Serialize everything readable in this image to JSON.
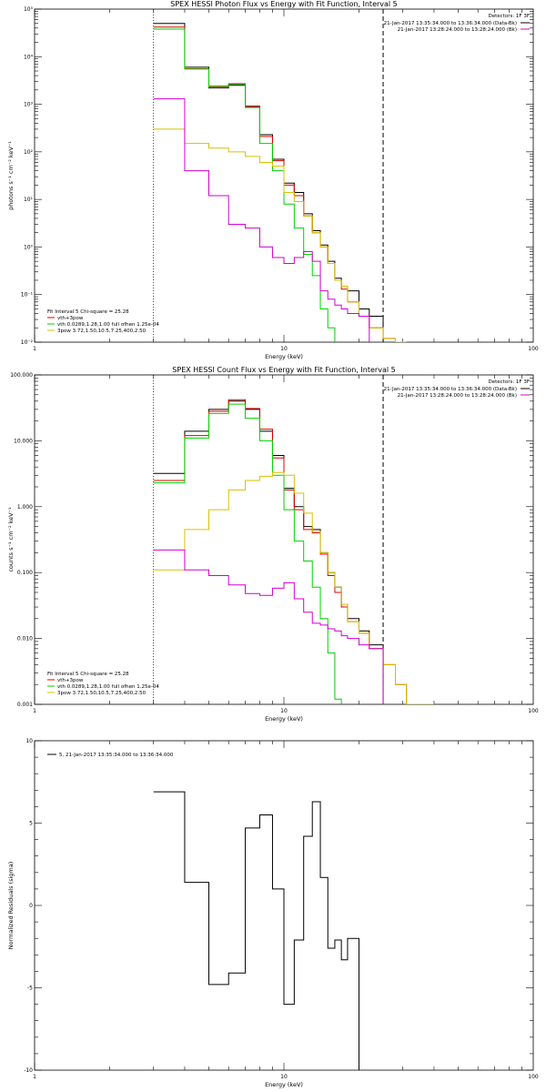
{
  "colors": {
    "black": "#000000",
    "red": "#e00000",
    "green": "#00d000",
    "yellow": "#d8c000",
    "magenta": "#d000d0",
    "marker": "#000000"
  },
  "chart_data": [
    {
      "type": "line",
      "step": true,
      "title": "SPEX HESSI Photon Flux vs Energy with Fit Function, Interval 5",
      "xlabel": "Energy (keV)",
      "ylabel": "photons s⁻¹ cm⁻² keV⁻¹",
      "xscale": "log",
      "yscale": "log",
      "xlim": [
        1,
        100
      ],
      "ylim": [
        0.01,
        100000
      ],
      "x_ticks": [
        {
          "v": 1,
          "t": "1"
        },
        {
          "v": 10,
          "t": "10"
        },
        {
          "v": 100,
          "t": "100"
        }
      ],
      "y_ticks": [
        {
          "v": 0.01,
          "t": "10⁻²"
        },
        {
          "v": 0.1,
          "t": "10⁻¹"
        },
        {
          "v": 1,
          "t": "10⁰"
        },
        {
          "v": 10,
          "t": "10¹"
        },
        {
          "v": 100,
          "t": "10²"
        },
        {
          "v": 1000,
          "t": "10³"
        },
        {
          "v": 10000,
          "t": "10⁴"
        },
        {
          "v": 100000,
          "t": "10⁵"
        }
      ],
      "legend_top": {
        "header": "Detectors: 1F 3F",
        "entries": [
          {
            "text": "21-Jan-2017 13:35:34.000 to 13:36:34.000 (Data-Bk)",
            "color": "black"
          },
          {
            "text": "21-Jan-2017 13:28:24.000 to 13:28:24.000 (Bk)",
            "color": "magenta"
          }
        ]
      },
      "legend_bottom": {
        "header": "Fit Interval 5   Chi-square = 25.28",
        "entries": [
          {
            "text": "vth+3pow",
            "color": "red"
          },
          {
            "text": "vth 0.0289,1.28,1.00  full ofhen 1.25e-04",
            "color": "green"
          },
          {
            "text": "3pow 3.72,1.50,10.5,7.25,400,2.50",
            "color": "yellow"
          }
        ]
      },
      "vlines": [
        {
          "x": 3,
          "style": "dotted"
        },
        {
          "x": 25,
          "style": "dashed"
        }
      ],
      "edges": [
        3,
        4,
        5,
        6,
        7,
        8,
        9,
        10,
        11,
        12,
        13,
        14,
        15,
        16,
        17,
        18,
        20,
        22,
        25,
        28,
        31,
        40
      ],
      "series": [
        {
          "color": "black",
          "values": [
            50000,
            6000,
            2200,
            2500,
            900,
            230,
            70,
            22,
            14,
            5,
            2.2,
            1.1,
            0.5,
            0.22,
            0.15,
            0.12,
            0.05,
            0.035,
            null,
            null,
            null
          ]
        },
        {
          "color": "red",
          "values": [
            42000,
            5600,
            2400,
            2700,
            920,
            210,
            65,
            20,
            12,
            4.5,
            2.0,
            1.0,
            0.45,
            0.2,
            0.13,
            0.07,
            0.035,
            0.02,
            0.012,
            null,
            null
          ]
        },
        {
          "color": "green",
          "values": [
            38000,
            5500,
            2300,
            2600,
            850,
            150,
            40,
            8,
            2.5,
            0.7,
            0.25,
            0.05,
            0.02,
            null,
            null,
            null,
            null,
            null,
            null,
            null,
            null
          ]
        },
        {
          "color": "yellow",
          "values": [
            300,
            150,
            120,
            100,
            80,
            60,
            50,
            14,
            9,
            4.5,
            2.0,
            1.0,
            0.45,
            0.2,
            0.15,
            0.07,
            0.035,
            0.02,
            0.012,
            0.01,
            null
          ]
        },
        {
          "color": "magenta",
          "values": [
            1300,
            40,
            12,
            3,
            2.5,
            1.0,
            0.6,
            0.45,
            0.6,
            0.8,
            0.5,
            0.12,
            0.08,
            0.06,
            0.05,
            0.04,
            0.035,
            null,
            null,
            null,
            null
          ]
        }
      ]
    },
    {
      "type": "line",
      "step": true,
      "title": "SPEX HESSI Count Flux vs Energy with Fit Function, Interval 5",
      "xlabel": "Energy (keV)",
      "ylabel": "counts s⁻¹ cm⁻² keV⁻¹",
      "xscale": "log",
      "yscale": "log",
      "xlim": [
        1,
        100
      ],
      "ylim": [
        0.001,
        100
      ],
      "x_ticks": [
        {
          "v": 1,
          "t": "1"
        },
        {
          "v": 10,
          "t": "10"
        },
        {
          "v": 100,
          "t": "100"
        }
      ],
      "y_ticks": [
        {
          "v": 0.001,
          "t": "0.001"
        },
        {
          "v": 0.01,
          "t": "0.010"
        },
        {
          "v": 0.1,
          "t": "0.100"
        },
        {
          "v": 1,
          "t": "1.000"
        },
        {
          "v": 10,
          "t": "10.000"
        },
        {
          "v": 100,
          "t": "100.000"
        }
      ],
      "legend_top": {
        "header": "Detectors: 1F 3F",
        "entries": [
          {
            "text": "21-Jan-2017 13:35:34.000 to 13:36:34.000 (Data-Bk)",
            "color": "black"
          },
          {
            "text": "21-Jan-2017 13:28:24.000 to 13:28:24.000 (Bk)",
            "color": "magenta"
          }
        ]
      },
      "legend_bottom": {
        "header": "Fit Interval 5   Chi-square = 25.28",
        "entries": [
          {
            "text": "vth+3pow",
            "color": "red"
          },
          {
            "text": "vth 0.0289,1.28,1.00  full ofhen 1.25e-04",
            "color": "green"
          },
          {
            "text": "3pow 3.72,1.50,10.5,7.25,400,2.50",
            "color": "yellow"
          }
        ]
      },
      "vlines": [
        {
          "x": 3,
          "style": "dotted"
        },
        {
          "x": 25,
          "style": "dashed"
        }
      ],
      "edges": [
        3,
        4,
        5,
        6,
        7,
        8,
        9,
        10,
        11,
        12,
        13,
        14,
        15,
        16,
        17,
        18,
        20,
        22,
        25,
        28,
        31,
        40
      ],
      "series": [
        {
          "color": "black",
          "values": [
            3.2,
            14,
            30,
            40,
            30,
            14,
            6,
            1.9,
            1.0,
            0.5,
            0.45,
            0.2,
            0.1,
            0.06,
            0.033,
            0.02,
            0.013,
            0.008,
            null,
            null,
            null
          ]
        },
        {
          "color": "red",
          "values": [
            2.5,
            12,
            28,
            42,
            31,
            15,
            5.5,
            1.8,
            0.9,
            0.45,
            0.4,
            0.19,
            0.09,
            0.05,
            0.03,
            0.018,
            0.012,
            0.007,
            0.004,
            0.002,
            null
          ]
        },
        {
          "color": "green",
          "values": [
            2.3,
            11,
            26,
            36,
            22,
            10,
            3,
            0.9,
            0.3,
            0.15,
            0.06,
            0.02,
            0.006,
            0.0012,
            null,
            null,
            null,
            null,
            null,
            null,
            null
          ]
        },
        {
          "color": "yellow",
          "values": [
            0.11,
            0.45,
            0.9,
            1.8,
            2.5,
            2.9,
            3.3,
            3.0,
            1.6,
            0.8,
            0.42,
            0.2,
            0.1,
            0.06,
            0.033,
            0.018,
            0.012,
            0.007,
            0.004,
            0.002,
            0.001
          ]
        },
        {
          "color": "magenta",
          "values": [
            0.22,
            0.11,
            0.09,
            0.065,
            0.048,
            0.045,
            0.058,
            0.07,
            0.04,
            0.025,
            0.017,
            0.016,
            0.014,
            0.013,
            0.011,
            0.01,
            0.008,
            0.007,
            null,
            null,
            null
          ]
        }
      ]
    },
    {
      "type": "line",
      "step": true,
      "title": "",
      "xlabel": "Energy (keV)",
      "ylabel": "Normalized Residuals (sigma)",
      "xscale": "log",
      "yscale": "linear",
      "xlim": [
        1,
        100
      ],
      "ylim": [
        -10,
        10
      ],
      "x_ticks": [
        {
          "v": 1,
          "t": "1"
        },
        {
          "v": 10,
          "t": "10"
        },
        {
          "v": 100,
          "t": "100"
        }
      ],
      "y_ticks": [
        {
          "v": -10,
          "t": "-10"
        },
        {
          "v": -5,
          "t": "-5"
        },
        {
          "v": 0,
          "t": "0"
        },
        {
          "v": 5,
          "t": "5"
        },
        {
          "v": 10,
          "t": "10"
        }
      ],
      "legend_top_left": {
        "entries": [
          {
            "text": "5, 21-Jan-2017 13:35:34.000 to 13:36:34.000",
            "color": "black"
          }
        ]
      },
      "edges": [
        3,
        4,
        5,
        6,
        7,
        8,
        9,
        10,
        11,
        12,
        13,
        14,
        15,
        16,
        17,
        18,
        20,
        22,
        25
      ],
      "series": [
        {
          "color": "black",
          "values": [
            6.9,
            1.4,
            -4.8,
            -4.1,
            4.7,
            5.5,
            1.0,
            -6.0,
            -2.1,
            4.2,
            6.3,
            1.7,
            -2.6,
            -2.1,
            -3.3,
            -2.0,
            null,
            null
          ]
        }
      ]
    }
  ]
}
